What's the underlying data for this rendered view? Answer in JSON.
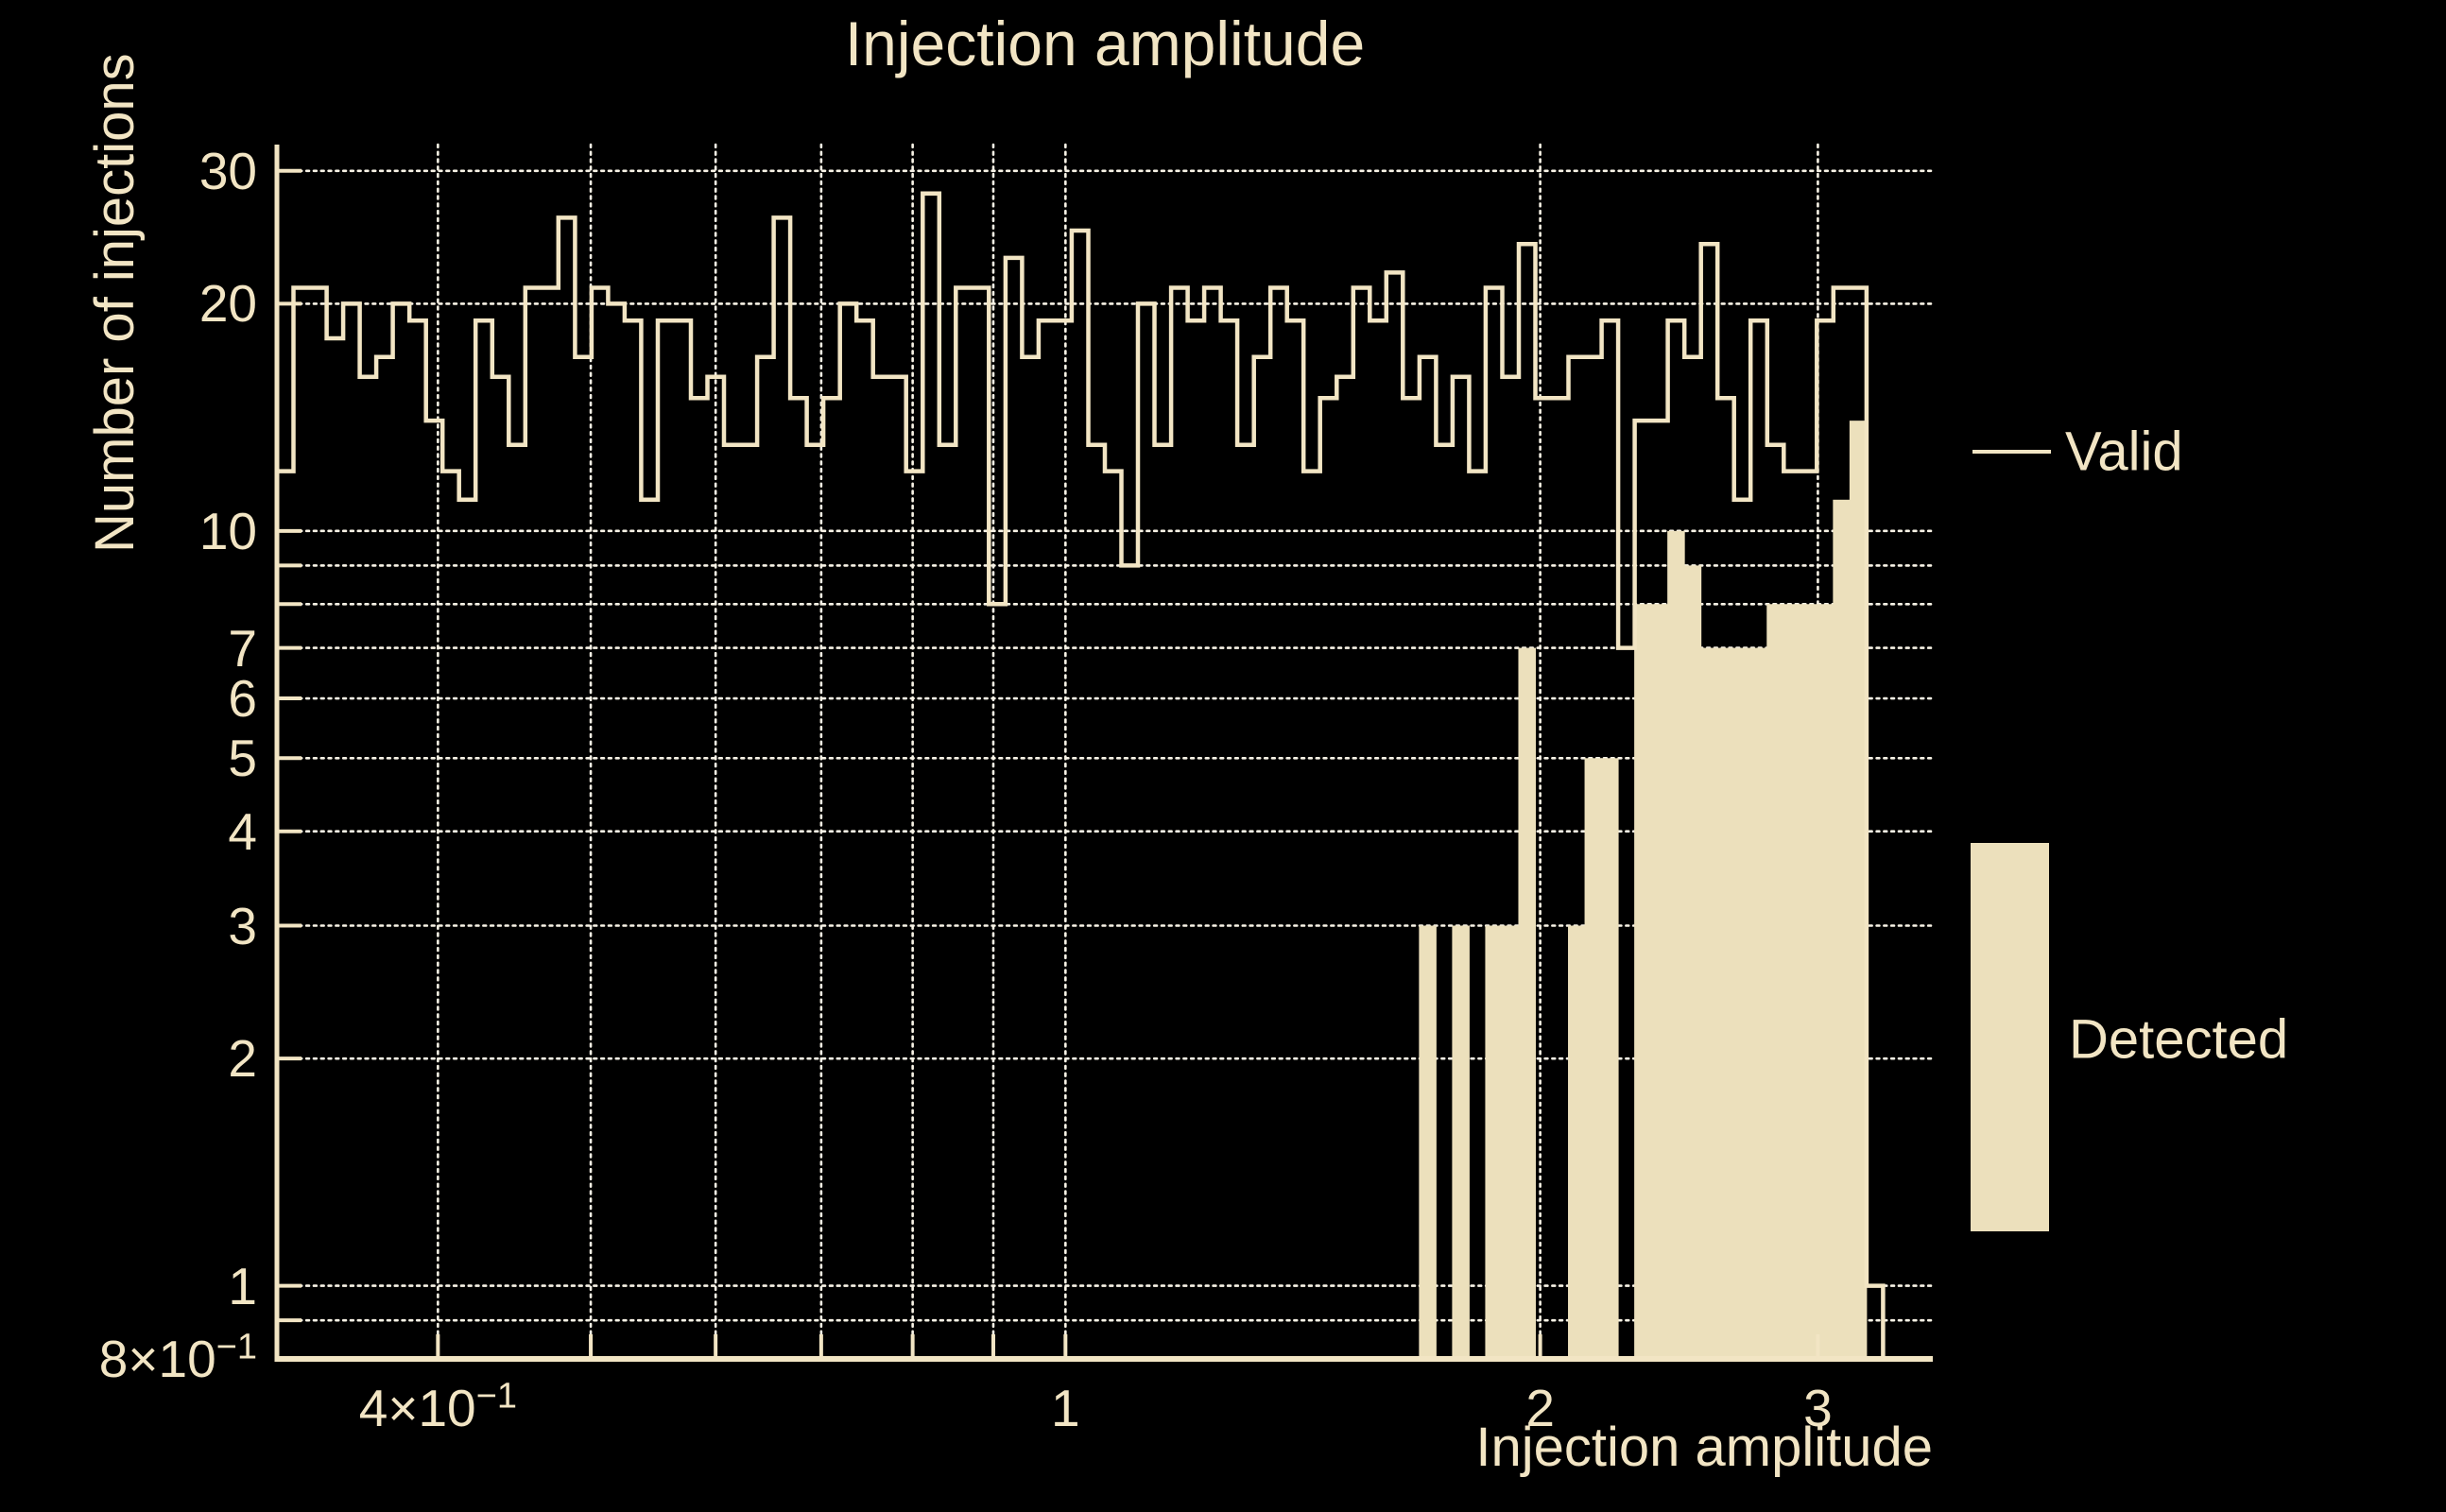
{
  "title": "Injection amplitude",
  "colors": {
    "background": "#000000",
    "foreground": "#f2e5c4",
    "bar_fill": "#ece0bc",
    "grid_dots": "#f8f3e6"
  },
  "legend": {
    "items": [
      {
        "label": "Valid",
        "marker": "line"
      },
      {
        "label": "Detected",
        "marker": "box"
      }
    ]
  },
  "axes": {
    "x": {
      "title": "Injection amplitude",
      "scale": "log",
      "min": 0.3162,
      "max": 3.548,
      "tick_labels": [
        {
          "text": "4×10",
          "sup": "−1",
          "value": 0.4
        },
        {
          "text": "1",
          "sup": "",
          "value": 1
        },
        {
          "text": "2",
          "sup": "",
          "value": 2
        },
        {
          "text": "3",
          "sup": "",
          "value": 3
        }
      ],
      "grid_values": [
        0.4,
        0.5,
        0.6,
        0.7,
        0.8,
        0.9,
        1,
        2,
        3
      ]
    },
    "y": {
      "title": "Number of injections",
      "scale": "log",
      "min": 0.8,
      "max": 32.5,
      "tick_labels": [
        {
          "text": "30",
          "sup": "",
          "value": 30
        },
        {
          "text": "20",
          "sup": "",
          "value": 20
        },
        {
          "text": "10",
          "sup": "",
          "value": 10
        },
        {
          "text": "7",
          "sup": "",
          "value": 7
        },
        {
          "text": "6",
          "sup": "",
          "value": 6
        },
        {
          "text": "5",
          "sup": "",
          "value": 5
        },
        {
          "text": "4",
          "sup": "",
          "value": 4
        },
        {
          "text": "3",
          "sup": "",
          "value": 3
        },
        {
          "text": "2",
          "sup": "",
          "value": 2
        },
        {
          "text": "1",
          "sup": "",
          "value": 1
        },
        {
          "text": "8×10",
          "sup": "−1",
          "value": 0.8
        }
      ],
      "grid_values": [
        30,
        20,
        10,
        9,
        8,
        7,
        6,
        5,
        4,
        3,
        2,
        1,
        0.9
      ]
    }
  },
  "chart_data": {
    "type": "bar",
    "subtype": "log-binned histogram, step outline + filled bars",
    "title": "Injection amplitude",
    "xlabel": "Injection amplitude",
    "ylabel": "Number of injections",
    "xlim": [
      0.3162,
      3.548
    ],
    "ylim": [
      0.8,
      32.5
    ],
    "x_scale": "log",
    "y_scale": "log",
    "grid": true,
    "legend_position": "right",
    "bin_start": 0.3162,
    "bin_count": 100,
    "log10_bin_width": 0.0105,
    "series": [
      {
        "name": "Valid",
        "style": "step-outline",
        "values": [
          12,
          21,
          21,
          18,
          20,
          16,
          17,
          20,
          19,
          14,
          12,
          11,
          19,
          16,
          13,
          21,
          21,
          26,
          17,
          21,
          20,
          19,
          11,
          19,
          19,
          15,
          16,
          13,
          13,
          17,
          26,
          15,
          13,
          15,
          20,
          19,
          16,
          16,
          12,
          28,
          13,
          21,
          21,
          8,
          23,
          17,
          19,
          19,
          25,
          13,
          12,
          9,
          20,
          13,
          21,
          19,
          21,
          19,
          13,
          17,
          21,
          19,
          12,
          15,
          16,
          21,
          19,
          22,
          15,
          17,
          13,
          16,
          12,
          21,
          16,
          24,
          15,
          15,
          17,
          17,
          19,
          7,
          14,
          14,
          19,
          17,
          24,
          15,
          11,
          19,
          13,
          12,
          12,
          19,
          21,
          21,
          1,
          0,
          0,
          0
        ]
      },
      {
        "name": "Detected",
        "style": "filled-bar",
        "values": [
          0,
          0,
          0,
          0,
          0,
          0,
          0,
          0,
          0,
          0,
          0,
          0,
          0,
          0,
          0,
          0,
          0,
          0,
          0,
          0,
          0,
          0,
          0,
          0,
          0,
          0,
          0,
          0,
          0,
          0,
          0,
          0,
          0,
          0,
          0,
          0,
          0,
          0,
          0,
          0,
          0,
          0,
          0,
          0,
          0,
          0,
          0,
          0,
          0,
          0,
          0,
          0,
          0,
          0,
          0,
          0,
          0,
          0,
          0,
          0,
          0,
          0,
          0,
          0,
          0,
          0,
          0,
          0,
          0,
          3,
          0,
          3,
          0,
          3,
          3,
          7,
          0,
          0,
          3,
          5,
          5,
          0,
          8,
          8,
          10,
          9,
          7,
          7,
          7,
          7,
          8,
          8,
          8,
          8,
          11,
          14,
          0,
          0,
          0,
          0
        ]
      }
    ]
  }
}
